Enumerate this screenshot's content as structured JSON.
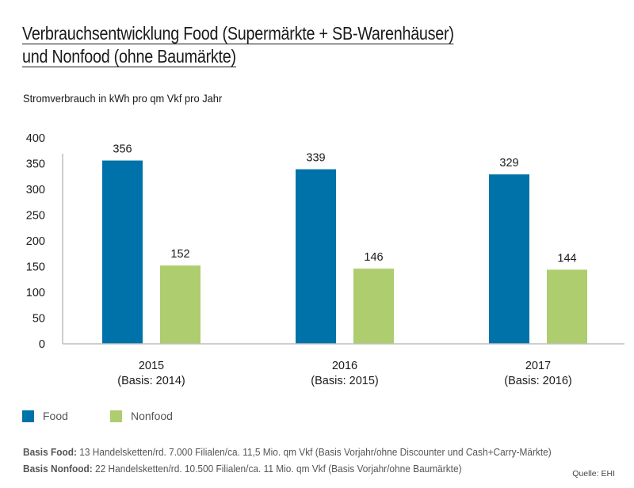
{
  "title_line1": "Verbrauchsentwicklung Food (Supermärkte + SB-Warenhäuser)",
  "title_line2": "und Nonfood (ohne Baumärkte)",
  "subtitle": "Stromverbrauch in kWh pro qm Vkf pro Jahr",
  "legend": [
    {
      "label": "Food",
      "color": "#0072AA"
    },
    {
      "label": "Nonfood",
      "color": "#ADCD6E"
    }
  ],
  "notes": [
    {
      "label": "Basis Food:",
      "text": " 13 Handelsketten/rd. 7.000 Filialen/ca. 11,5 Mio. qm Vkf (Basis Vorjahr/ohne Discounter und Cash+Carry-Märkte)"
    },
    {
      "label": "Basis Nonfood:",
      "text": " 22 Handelsketten/rd. 10.500 Filialen/ca. 11 Mio. qm Vkf (Basis Vorjahr/ohne Baumärkte)"
    }
  ],
  "source": "Quelle: EHI",
  "chart_data": {
    "type": "bar",
    "title": "Verbrauchsentwicklung Food (Supermärkte + SB-Warenhäuser) und Nonfood (ohne Baumärkte)",
    "ylabel": "Stromverbrauch in kWh pro qm Vkf pro Jahr",
    "xlabel": "",
    "categories": [
      {
        "year": "2015",
        "basis": "(Basis: 2014)"
      },
      {
        "year": "2016",
        "basis": "(Basis: 2015)"
      },
      {
        "year": "2017",
        "basis": "(Basis: 2016)"
      }
    ],
    "series": [
      {
        "name": "Food",
        "color": "#0072AA",
        "values": [
          356,
          339,
          329
        ]
      },
      {
        "name": "Nonfood",
        "color": "#ADCD6E",
        "values": [
          152,
          146,
          144
        ]
      }
    ],
    "ylim": [
      0,
      400
    ],
    "yticks": [
      0,
      50,
      100,
      150,
      200,
      250,
      300,
      350,
      400
    ],
    "grid": false,
    "legend_position": "bottom-left",
    "data_labels": true
  }
}
